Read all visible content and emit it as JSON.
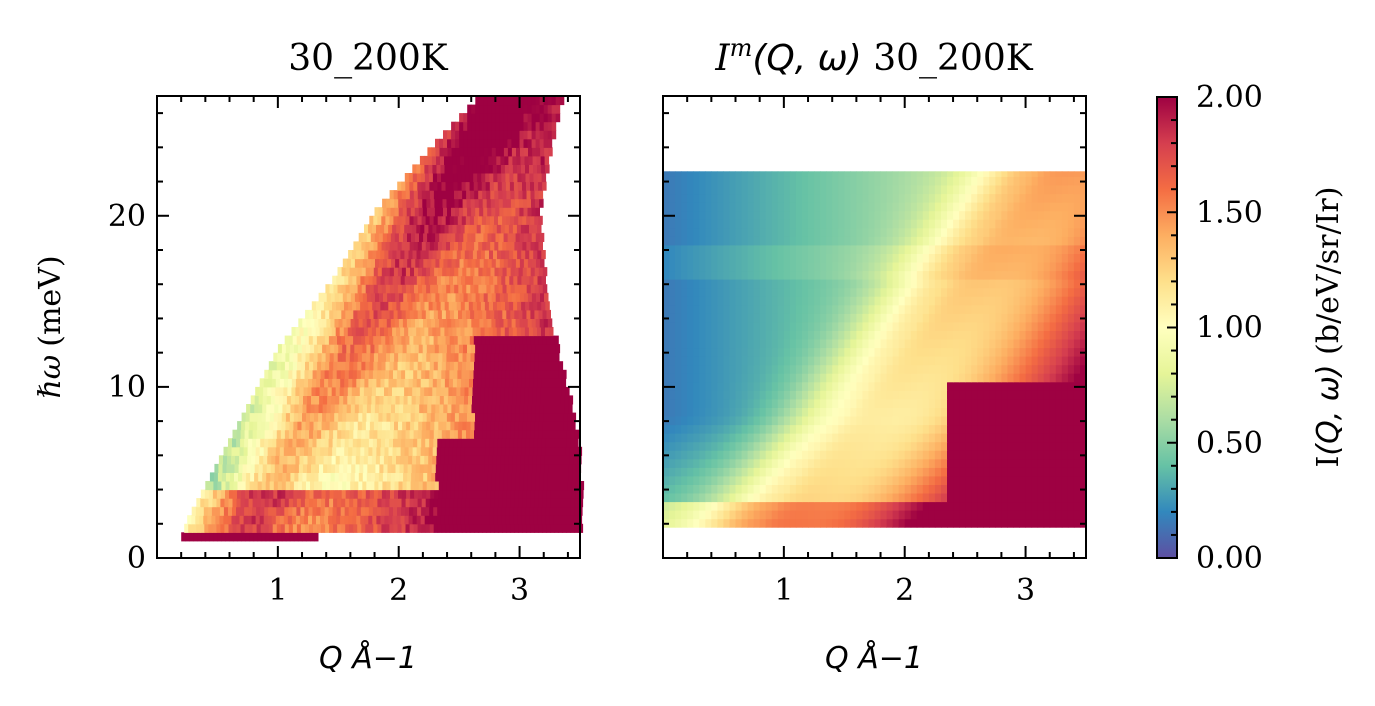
{
  "chart_data": [
    {
      "type": "heatmap",
      "title": "30_200K",
      "xlabel": "Q Å−1",
      "ylabel_symbol": "ℏω",
      "ylabel_unit": "(meV)",
      "xlim": [
        0,
        3.5
      ],
      "ylim": [
        0,
        27
      ],
      "xticks": [
        {
          "value": 1,
          "label": "1"
        },
        {
          "value": 2,
          "label": "2"
        },
        {
          "value": 3,
          "label": "3"
        }
      ],
      "yticks": [
        {
          "value": 0,
          "label": "0"
        },
        {
          "value": 10,
          "label": "10"
        },
        {
          "value": 20,
          "label": "20"
        }
      ],
      "q_step": 0.0333,
      "e_step": 0.5,
      "coverage_max_q_by_energy": [
        [
          1.0,
          1.3
        ],
        [
          1.5,
          3.5
        ],
        [
          5,
          3.5
        ],
        [
          8,
          3.45
        ],
        [
          12,
          3.3
        ],
        [
          16,
          3.2
        ],
        [
          20,
          3.15
        ],
        [
          24,
          3.25
        ],
        [
          27,
          3.35
        ]
      ],
      "coverage_min_q_by_energy": [
        [
          1.0,
          0.2
        ],
        [
          2,
          0.25
        ],
        [
          4,
          0.4
        ],
        [
          8,
          0.7
        ],
        [
          12,
          1.0
        ],
        [
          16,
          1.45
        ],
        [
          20,
          1.8
        ],
        [
          24,
          2.3
        ],
        [
          27,
          2.7
        ]
      ],
      "features": {
        "strong_intensity_region": "Q > 2.3 and ħω < 7 meV (saturated, > 2.00)",
        "elastic_band": "ħω < 1.5 meV saturated across Q",
        "dispersive_ridge": "bright ridge rising from Q≈0.8 at 2 meV toward Q≈2.2 at 20 meV"
      }
    },
    {
      "type": "heatmap",
      "title_main": "I",
      "title_sup": "m",
      "title_args": "(Q, ω)",
      "title_suffix": " 30_200K",
      "xlabel": "Q Å−1",
      "xlim": [
        0,
        3.5
      ],
      "ylim": [
        0,
        27
      ],
      "energy_range": [
        1.8,
        22.6
      ],
      "xticks": [
        {
          "value": 1,
          "label": "1"
        },
        {
          "value": 2,
          "label": "2"
        },
        {
          "value": 3,
          "label": "3"
        }
      ],
      "yticks": [
        0,
        10,
        20
      ],
      "q_step": 0.05,
      "e_step": 0.5,
      "features": {
        "model": "smooth intensity increasing with Q; ridge at Q≈2.0–2.8 for high ħω, saturated (> 2.00) for Q > 2.3 and ħω < 10 meV",
        "kink_energy": 17
      }
    }
  ],
  "colorbar": {
    "label_main": "I",
    "label_args": "(Q, ω)",
    "label_unit": " (b/eV/sr/Ir)",
    "vmin": 0.0,
    "vmax": 2.0,
    "colormap": "Spectral_r",
    "colormap_stops": [
      "#5e4fa2",
      "#3288bd",
      "#66c2a5",
      "#abdda4",
      "#e6f598",
      "#ffffbf",
      "#fee08b",
      "#fdae61",
      "#f46d43",
      "#d53e4f",
      "#9e0142"
    ],
    "ticks": [
      {
        "value": 0.0,
        "label": "0.00"
      },
      {
        "value": 0.5,
        "label": "0.50"
      },
      {
        "value": 1.0,
        "label": "1.00"
      },
      {
        "value": 1.5,
        "label": "1.50"
      },
      {
        "value": 2.0,
        "label": "2.00"
      }
    ]
  }
}
